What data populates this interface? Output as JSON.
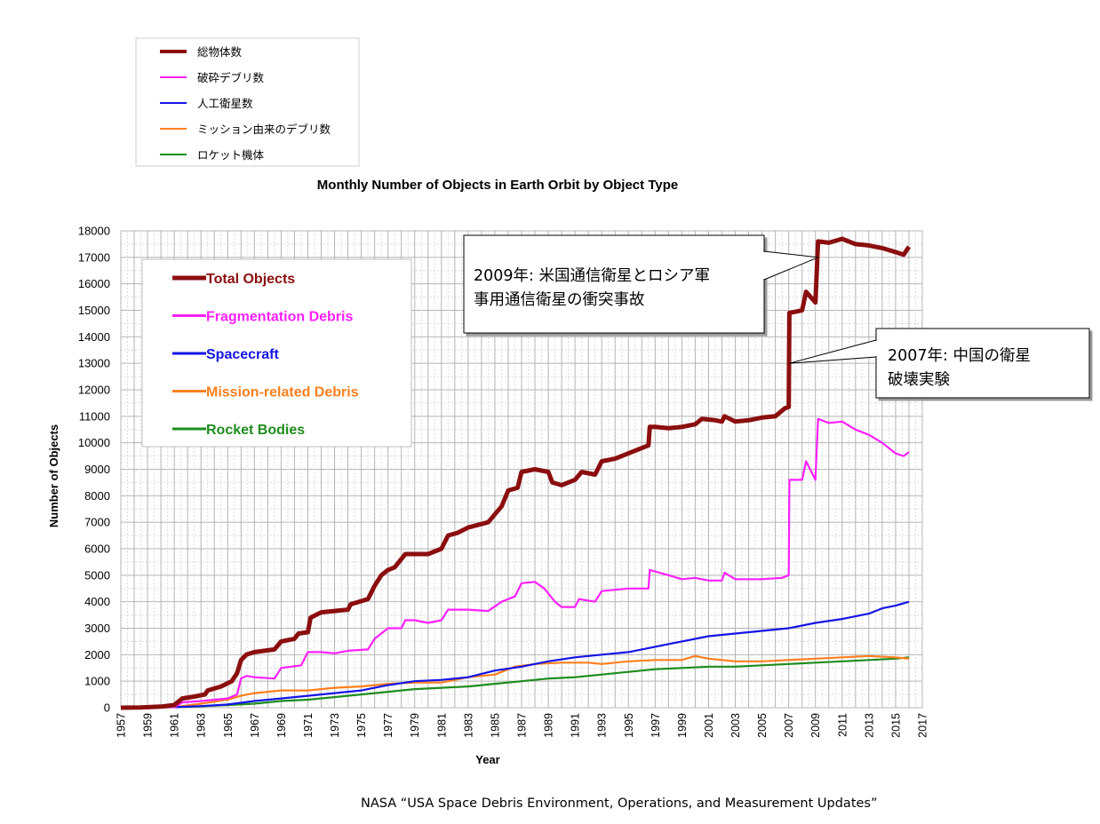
{
  "chart_data": {
    "type": "line",
    "title": "Monthly Number of Objects in Earth Orbit by Object Type",
    "xlabel": "Year",
    "ylabel": "Number of Objects",
    "xlim": [
      1957,
      2017
    ],
    "ylim": [
      0,
      18000
    ],
    "x_ticks": [
      "1957",
      "1959",
      "1961",
      "1963",
      "1965",
      "1967",
      "1969",
      "1971",
      "1973",
      "1975",
      "1977",
      "1979",
      "1981",
      "1983",
      "1985",
      "1987",
      "1989",
      "1991",
      "1993",
      "1995",
      "1997",
      "1999",
      "2001",
      "2003",
      "2005",
      "2007",
      "2009",
      "2011",
      "2013",
      "2015",
      "2017"
    ],
    "y_ticks": [
      "0",
      "1000",
      "2000",
      "3000",
      "4000",
      "5000",
      "6000",
      "7000",
      "8000",
      "9000",
      "10000",
      "11000",
      "12000",
      "13000",
      "14000",
      "15000",
      "16000",
      "17000",
      "18000"
    ],
    "grid": true,
    "legend_jp": {
      "placement": "top-left, above chart",
      "entries": [
        "総物体数",
        "破砕デブリ数",
        "人工衛星数",
        "ミッション由来のデブリ数",
        "ロケット機体"
      ]
    },
    "legend_en": {
      "placement": "inside top-left",
      "entries": [
        "Total Objects",
        "Fragmentation Debris",
        "Spacecraft",
        "Mission-related Debris",
        "Rocket Bodies"
      ]
    },
    "series": [
      {
        "name": "Total Objects",
        "color": "#8b0e0e",
        "points": [
          [
            1957,
            0
          ],
          [
            1958.5,
            10
          ],
          [
            1960,
            40
          ],
          [
            1961,
            100
          ],
          [
            1961.6,
            350
          ],
          [
            1962.5,
            420
          ],
          [
            1963.3,
            500
          ],
          [
            1963.5,
            650
          ],
          [
            1964.5,
            800
          ],
          [
            1965.3,
            1000
          ],
          [
            1965.7,
            1300
          ],
          [
            1966,
            1800
          ],
          [
            1966.4,
            2000
          ],
          [
            1967,
            2100
          ],
          [
            1968.5,
            2200
          ],
          [
            1969,
            2500
          ],
          [
            1970,
            2600
          ],
          [
            1970.3,
            2800
          ],
          [
            1971,
            2850
          ],
          [
            1971.2,
            3400
          ],
          [
            1972,
            3600
          ],
          [
            1974,
            3700
          ],
          [
            1974.2,
            3900
          ],
          [
            1975.5,
            4100
          ],
          [
            1976,
            4600
          ],
          [
            1976.5,
            5000
          ],
          [
            1977,
            5200
          ],
          [
            1977.5,
            5300
          ],
          [
            1978.3,
            5800
          ],
          [
            1980,
            5800
          ],
          [
            1981,
            6000
          ],
          [
            1981.5,
            6500
          ],
          [
            1982.2,
            6600
          ],
          [
            1983,
            6800
          ],
          [
            1984.5,
            7000
          ],
          [
            1985.5,
            7600
          ],
          [
            1986,
            8200
          ],
          [
            1986.7,
            8300
          ],
          [
            1987,
            8900
          ],
          [
            1988,
            9000
          ],
          [
            1989,
            8900
          ],
          [
            1989.3,
            8500
          ],
          [
            1990,
            8400
          ],
          [
            1991,
            8600
          ],
          [
            1991.5,
            8900
          ],
          [
            1992.5,
            8800
          ],
          [
            1993,
            9300
          ],
          [
            1994,
            9400
          ],
          [
            1995,
            9600
          ],
          [
            1996,
            9800
          ],
          [
            1996.5,
            9900
          ],
          [
            1996.6,
            10600
          ],
          [
            1997,
            10600
          ],
          [
            1998,
            10550
          ],
          [
            1999,
            10600
          ],
          [
            2000,
            10700
          ],
          [
            2000.5,
            10900
          ],
          [
            2001.5,
            10850
          ],
          [
            2002,
            10800
          ],
          [
            2002.2,
            11000
          ],
          [
            2003,
            10800
          ],
          [
            2004,
            10850
          ],
          [
            2005,
            10950
          ],
          [
            2006,
            11000
          ],
          [
            2006.7,
            11300
          ],
          [
            2007,
            11350
          ],
          [
            2007.05,
            14900
          ],
          [
            2008,
            15000
          ],
          [
            2008.3,
            15700
          ],
          [
            2009,
            15300
          ],
          [
            2009.2,
            17600
          ],
          [
            2010,
            17550
          ],
          [
            2011,
            17700
          ],
          [
            2012,
            17500
          ],
          [
            2013,
            17450
          ],
          [
            2014,
            17350
          ],
          [
            2015,
            17200
          ],
          [
            2015.6,
            17100
          ],
          [
            2016,
            17400
          ]
        ]
      },
      {
        "name": "Fragmentation Debris",
        "color": "#ff20ff",
        "points": [
          [
            1957,
            0
          ],
          [
            1961,
            20
          ],
          [
            1961.6,
            200
          ],
          [
            1963,
            250
          ],
          [
            1965,
            350
          ],
          [
            1965.7,
            500
          ],
          [
            1966,
            1100
          ],
          [
            1966.4,
            1200
          ],
          [
            1967,
            1150
          ],
          [
            1968.5,
            1100
          ],
          [
            1969,
            1500
          ],
          [
            1970.5,
            1600
          ],
          [
            1971,
            2100
          ],
          [
            1972,
            2100
          ],
          [
            1973,
            2050
          ],
          [
            1974,
            2150
          ],
          [
            1975.5,
            2200
          ],
          [
            1976,
            2600
          ],
          [
            1977,
            3000
          ],
          [
            1978,
            3000
          ],
          [
            1978.3,
            3300
          ],
          [
            1979,
            3300
          ],
          [
            1980,
            3200
          ],
          [
            1981,
            3300
          ],
          [
            1981.5,
            3700
          ],
          [
            1983,
            3700
          ],
          [
            1984.5,
            3650
          ],
          [
            1985.5,
            4000
          ],
          [
            1986.5,
            4200
          ],
          [
            1987,
            4700
          ],
          [
            1988,
            4750
          ],
          [
            1988.7,
            4500
          ],
          [
            1989.5,
            4000
          ],
          [
            1990,
            3800
          ],
          [
            1991,
            3800
          ],
          [
            1991.3,
            4100
          ],
          [
            1992.5,
            4000
          ],
          [
            1993,
            4400
          ],
          [
            1994,
            4450
          ],
          [
            1995,
            4500
          ],
          [
            1996.5,
            4500
          ],
          [
            1996.6,
            5200
          ],
          [
            1998,
            5000
          ],
          [
            1999,
            4850
          ],
          [
            2000,
            4900
          ],
          [
            2001,
            4800
          ],
          [
            2002,
            4800
          ],
          [
            2002.2,
            5100
          ],
          [
            2003,
            4850
          ],
          [
            2004,
            4850
          ],
          [
            2005,
            4850
          ],
          [
            2006.5,
            4900
          ],
          [
            2007,
            5000
          ],
          [
            2007.05,
            8600
          ],
          [
            2008,
            8600
          ],
          [
            2008.3,
            9300
          ],
          [
            2009,
            8600
          ],
          [
            2009.2,
            10900
          ],
          [
            2010,
            10750
          ],
          [
            2011,
            10800
          ],
          [
            2012,
            10500
          ],
          [
            2013,
            10300
          ],
          [
            2014,
            10000
          ],
          [
            2015,
            9600
          ],
          [
            2015.6,
            9500
          ],
          [
            2016,
            9650
          ]
        ]
      },
      {
        "name": "Spacecraft",
        "color": "#1414e6",
        "points": [
          [
            1957,
            0
          ],
          [
            1961,
            20
          ],
          [
            1963,
            60
          ],
          [
            1965,
            120
          ],
          [
            1967,
            250
          ],
          [
            1969,
            350
          ],
          [
            1971,
            450
          ],
          [
            1973,
            550
          ],
          [
            1975,
            650
          ],
          [
            1977,
            850
          ],
          [
            1979,
            1000
          ],
          [
            1981,
            1050
          ],
          [
            1983,
            1150
          ],
          [
            1985,
            1400
          ],
          [
            1987,
            1550
          ],
          [
            1989,
            1750
          ],
          [
            1991,
            1900
          ],
          [
            1993,
            2000
          ],
          [
            1995,
            2100
          ],
          [
            1997,
            2300
          ],
          [
            1999,
            2500
          ],
          [
            2001,
            2700
          ],
          [
            2003,
            2800
          ],
          [
            2005,
            2900
          ],
          [
            2007,
            3000
          ],
          [
            2009,
            3200
          ],
          [
            2011,
            3350
          ],
          [
            2013,
            3550
          ],
          [
            2014,
            3750
          ],
          [
            2015,
            3850
          ],
          [
            2016,
            4000
          ]
        ]
      },
      {
        "name": "Mission-related Debris",
        "color": "#ff7f1e",
        "points": [
          [
            1957,
            0
          ],
          [
            1961,
            20
          ],
          [
            1963,
            150
          ],
          [
            1965,
            300
          ],
          [
            1966,
            450
          ],
          [
            1967,
            550
          ],
          [
            1969,
            650
          ],
          [
            1971,
            650
          ],
          [
            1973,
            750
          ],
          [
            1975,
            800
          ],
          [
            1977,
            900
          ],
          [
            1979,
            950
          ],
          [
            1981,
            950
          ],
          [
            1983,
            1150
          ],
          [
            1985,
            1250
          ],
          [
            1986.5,
            1550
          ],
          [
            1988,
            1650
          ],
          [
            1990,
            1700
          ],
          [
            1992,
            1700
          ],
          [
            1993,
            1650
          ],
          [
            1995,
            1750
          ],
          [
            1997,
            1800
          ],
          [
            1999,
            1800
          ],
          [
            2000,
            1950
          ],
          [
            2001,
            1850
          ],
          [
            2003,
            1750
          ],
          [
            2005,
            1750
          ],
          [
            2007,
            1800
          ],
          [
            2009,
            1850
          ],
          [
            2011,
            1900
          ],
          [
            2013,
            1950
          ],
          [
            2015,
            1900
          ],
          [
            2016,
            1850
          ]
        ]
      },
      {
        "name": "Rocket Bodies",
        "color": "#1e8c1e",
        "points": [
          [
            1957,
            0
          ],
          [
            1961,
            20
          ],
          [
            1963,
            50
          ],
          [
            1965,
            100
          ],
          [
            1967,
            150
          ],
          [
            1969,
            250
          ],
          [
            1971,
            300
          ],
          [
            1973,
            400
          ],
          [
            1975,
            500
          ],
          [
            1977,
            600
          ],
          [
            1979,
            700
          ],
          [
            1981,
            750
          ],
          [
            1983,
            800
          ],
          [
            1985,
            900
          ],
          [
            1987,
            1000
          ],
          [
            1989,
            1100
          ],
          [
            1991,
            1150
          ],
          [
            1993,
            1250
          ],
          [
            1995,
            1350
          ],
          [
            1997,
            1450
          ],
          [
            1999,
            1500
          ],
          [
            2001,
            1550
          ],
          [
            2003,
            1550
          ],
          [
            2005,
            1600
          ],
          [
            2007,
            1650
          ],
          [
            2009,
            1700
          ],
          [
            2011,
            1750
          ],
          [
            2013,
            1800
          ],
          [
            2015,
            1850
          ],
          [
            2016,
            1900
          ]
        ]
      }
    ],
    "annotations": [
      {
        "lines": [
          "2009年:  米国通信衛星とロシア軍",
          "事用通信衛星の衝突事故"
        ],
        "target": [
          2009.2,
          17000
        ]
      },
      {
        "lines": [
          "2007年:  中国の衛星",
          "破壊実験"
        ],
        "target": [
          2007.05,
          13000
        ]
      }
    ],
    "source_note": "NASA “USA Space Debris Environment, Operations, and Measurement Updates”"
  }
}
